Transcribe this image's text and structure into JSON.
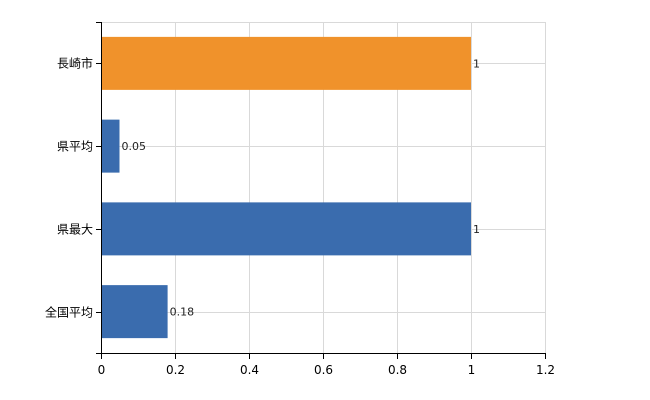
{
  "chart_data": {
    "type": "bar",
    "orientation": "horizontal",
    "categories": [
      "長崎市",
      "県平均",
      "県最大",
      "全国平均"
    ],
    "values": [
      1,
      0.05,
      1,
      0.18
    ],
    "value_labels": [
      "1",
      "0.05",
      "1",
      "0.18"
    ],
    "bar_colors": [
      "#F0922B",
      "#3A6CAE",
      "#3A6CAE",
      "#3A6CAE"
    ],
    "xlim": [
      0,
      1.2
    ],
    "xticks": [
      "0",
      "0.2",
      "0.4",
      "0.6",
      "0.8",
      "1",
      "1.2"
    ],
    "grid": true,
    "legend": "none"
  }
}
